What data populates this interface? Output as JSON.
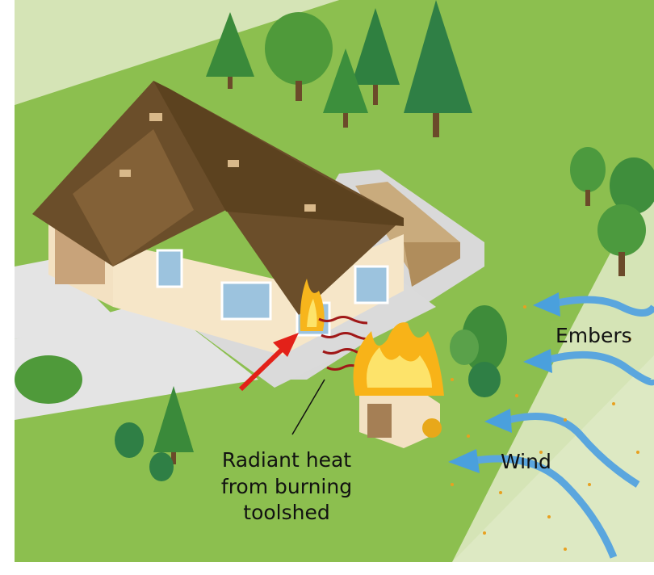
{
  "labels": {
    "embers": "Embers",
    "wind": "Wind",
    "radiant_heat": [
      "Radiant heat",
      "from burning",
      "toolshed"
    ]
  }
}
